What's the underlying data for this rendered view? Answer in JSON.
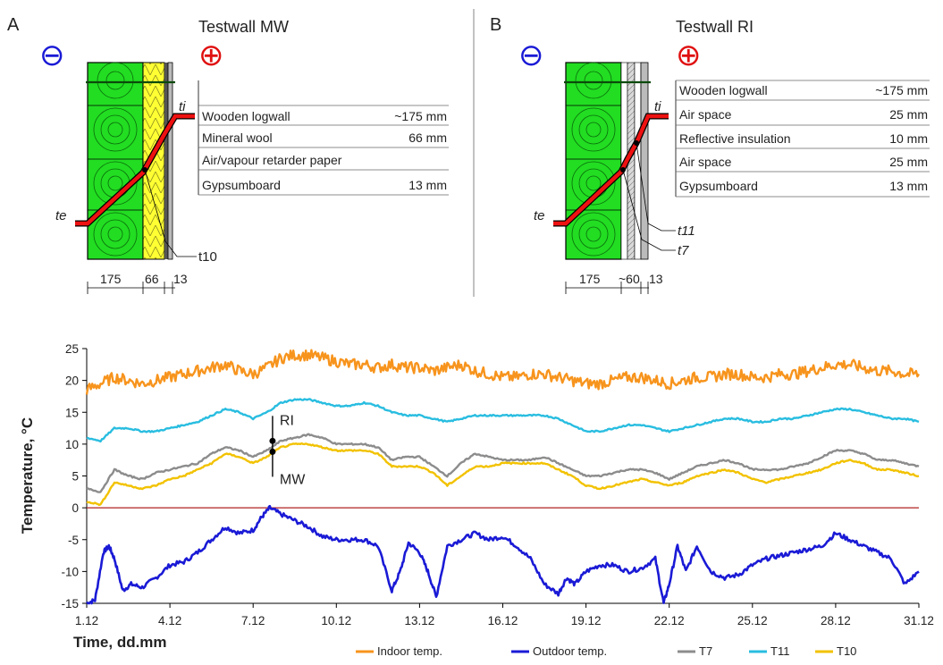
{
  "panels": [
    {
      "id": "A",
      "letter": "A",
      "title": "Testwall MW",
      "minus": "⊖",
      "plus": "⊕",
      "layers": [
        {
          "name": "Wooden logwall",
          "thickness": "~175 mm"
        },
        {
          "name": "Mineral wool",
          "thickness": "66 mm"
        },
        {
          "name": "Air/vapour retarder paper",
          "thickness": ""
        },
        {
          "name": "Gypsumboard",
          "thickness": "13 mm"
        }
      ],
      "label_te": "te",
      "label_ti": "ti",
      "sensors": [
        "t10"
      ],
      "dims": [
        "175",
        "66",
        "13"
      ]
    },
    {
      "id": "B",
      "letter": "B",
      "title": "Testwall RI",
      "minus": "⊖",
      "plus": "⊕",
      "layers": [
        {
          "name": "Wooden logwall",
          "thickness": "~175 mm"
        },
        {
          "name": "Air space",
          "thickness": "25 mm"
        },
        {
          "name": "Reflective insulation",
          "thickness": "10 mm"
        },
        {
          "name": "Air space",
          "thickness": "25 mm"
        },
        {
          "name": "Gypsumboard",
          "thickness": "13 mm"
        }
      ],
      "label_te": "te",
      "label_ti": "ti",
      "sensors": [
        "t11",
        "t7"
      ],
      "dims": [
        "175",
        "~60",
        "13"
      ]
    }
  ],
  "chart_data": {
    "type": "line",
    "xlabel": "Time, dd.mm",
    "ylabel": "Temperature, °C",
    "x_ticks": [
      "1.12",
      "4.12",
      "7.12",
      "10.12",
      "13.12",
      "16.12",
      "19.12",
      "22.12",
      "25.12",
      "28.12",
      "31.12"
    ],
    "x_tick_days": [
      1,
      4,
      7,
      10,
      13,
      16,
      19,
      22,
      25,
      28,
      31
    ],
    "xlim": [
      1,
      31
    ],
    "ylim": [
      -15,
      25
    ],
    "y_ticks": [
      -15,
      -10,
      -5,
      0,
      5,
      10,
      15,
      20,
      25
    ],
    "zero_line": true,
    "grid": false,
    "legend_position": "bottom",
    "annotations": [
      {
        "text": "RI",
        "x": 7.7,
        "y": 10.5
      },
      {
        "text": "MW",
        "x": 7.7,
        "y": 8.8
      }
    ],
    "series": [
      {
        "name": "Indoor temp.",
        "color": "#F7941D",
        "x": [
          1,
          1.5,
          2,
          2.5,
          3,
          3.5,
          4,
          4.5,
          5,
          5.5,
          6,
          6.5,
          7,
          7.5,
          8,
          8.5,
          9,
          9.5,
          10,
          10.5,
          11,
          11.5,
          12,
          12.5,
          13,
          13.5,
          14,
          14.5,
          15,
          15.5,
          16,
          16.5,
          17,
          17.5,
          18,
          18.5,
          19,
          19.5,
          20,
          20.5,
          21,
          21.5,
          22,
          22.5,
          23,
          23.5,
          24,
          24.5,
          25,
          25.5,
          26,
          26.5,
          27,
          27.5,
          28,
          28.5,
          29,
          29.5,
          30,
          30.5,
          31
        ],
        "values": [
          18.5,
          19.5,
          20.5,
          20,
          19.5,
          20,
          20.5,
          21,
          21.5,
          22,
          22.5,
          21.5,
          21,
          22,
          23.5,
          24,
          24,
          23.5,
          23,
          22.5,
          22.5,
          22,
          22.5,
          22,
          22,
          21.5,
          22,
          22.5,
          21.5,
          21,
          20.5,
          20.5,
          21,
          21,
          20.5,
          20,
          19.5,
          19.5,
          20,
          20.5,
          20.5,
          20,
          19.5,
          20,
          20.5,
          20.5,
          21,
          21,
          20.5,
          20.5,
          21,
          21,
          21.5,
          22,
          22.5,
          22.5,
          22,
          21.5,
          21.5,
          21,
          21
        ]
      },
      {
        "name": "Outdoor temp.",
        "color": "#1A1AD6",
        "x": [
          1,
          1.3,
          1.6,
          1.8,
          2,
          2.3,
          2.6,
          3,
          3.5,
          4,
          4.5,
          5,
          5.5,
          6,
          6.5,
          7,
          7.3,
          7.6,
          8,
          8.5,
          9,
          9.5,
          10,
          10.5,
          11,
          11.5,
          12,
          12.3,
          12.6,
          13,
          13.3,
          13.6,
          14,
          14.5,
          15,
          15.5,
          16,
          16.5,
          17,
          17.5,
          18,
          18.3,
          18.6,
          19,
          19.5,
          20,
          20.5,
          21,
          21.5,
          21.8,
          22,
          22.3,
          22.6,
          23,
          23.5,
          24,
          24.5,
          25,
          25.5,
          26,
          26.5,
          27,
          27.5,
          28,
          28.5,
          29,
          29.5,
          30,
          30.5,
          31
        ],
        "values": [
          -15,
          -14.5,
          -7,
          -6,
          -8,
          -13,
          -12,
          -12.5,
          -11,
          -9,
          -8.5,
          -7,
          -5,
          -3,
          -4,
          -3.5,
          -1.5,
          0,
          -1,
          -2,
          -3,
          -4.5,
          -5,
          -5,
          -5,
          -6,
          -13,
          -10,
          -5.5,
          -7,
          -10,
          -14,
          -6,
          -5,
          -4,
          -5,
          -4.5,
          -6,
          -8,
          -12,
          -13.5,
          -11,
          -12,
          -10,
          -9,
          -9,
          -10,
          -9.5,
          -8,
          -15,
          -12,
          -6,
          -10,
          -6,
          -10,
          -11,
          -10.5,
          -9,
          -8,
          -7.5,
          -7,
          -6.5,
          -6,
          -4,
          -5,
          -6,
          -7,
          -8,
          -12,
          -10
        ]
      },
      {
        "name": "T7",
        "color": "#8C8C8C",
        "x": [
          1,
          1.5,
          2,
          2.5,
          3,
          3.5,
          4,
          4.5,
          5,
          5.5,
          6,
          6.5,
          7,
          7.5,
          8,
          8.5,
          9,
          9.5,
          10,
          10.5,
          11,
          11.5,
          12,
          12.5,
          13,
          13.5,
          14,
          14.5,
          15,
          15.5,
          16,
          16.5,
          17,
          17.5,
          18,
          18.5,
          19,
          19.5,
          20,
          20.5,
          21,
          21.5,
          22,
          22.5,
          23,
          23.5,
          24,
          24.5,
          25,
          25.5,
          26,
          26.5,
          27,
          27.5,
          28,
          28.5,
          29,
          29.5,
          30,
          30.5,
          31
        ],
        "values": [
          3,
          2.5,
          6,
          5,
          4.5,
          5.5,
          6,
          6.5,
          7,
          8.5,
          9.5,
          9,
          8,
          9,
          10.5,
          11,
          11.5,
          11,
          10,
          10,
          10,
          9.5,
          7.5,
          8,
          8,
          6.5,
          5,
          7,
          8.5,
          8,
          7.5,
          7.5,
          7.5,
          8,
          7,
          6,
          5,
          5,
          5.5,
          6,
          6,
          5.5,
          4.5,
          5.5,
          6.5,
          7,
          7.5,
          7,
          6,
          6,
          6,
          6.5,
          7,
          8,
          9,
          9,
          8.5,
          7.5,
          7.5,
          7,
          6.5
        ]
      },
      {
        "name": "T11",
        "color": "#29BDE0",
        "x": [
          1,
          1.5,
          2,
          2.5,
          3,
          3.5,
          4,
          4.5,
          5,
          5.5,
          6,
          6.5,
          7,
          7.5,
          8,
          8.5,
          9,
          9.5,
          10,
          10.5,
          11,
          11.5,
          12,
          12.5,
          13,
          13.5,
          14,
          14.5,
          15,
          15.5,
          16,
          16.5,
          17,
          17.5,
          18,
          18.5,
          19,
          19.5,
          20,
          20.5,
          21,
          21.5,
          22,
          22.5,
          23,
          23.5,
          24,
          24.5,
          25,
          25.5,
          26,
          26.5,
          27,
          27.5,
          28,
          28.5,
          29,
          29.5,
          30,
          30.5,
          31
        ],
        "values": [
          11,
          10.5,
          12.5,
          12.5,
          12,
          12,
          12.5,
          13,
          13.5,
          14.5,
          15.5,
          15,
          14,
          15,
          16.5,
          17,
          17,
          16.5,
          16,
          16,
          16.5,
          16,
          15,
          14.5,
          14.5,
          14,
          13.5,
          14,
          14.5,
          14.5,
          14.5,
          14.5,
          14.5,
          14.5,
          14,
          13,
          12,
          12,
          12.5,
          13,
          13,
          12.5,
          12,
          12.5,
          13,
          13.5,
          14,
          14,
          13.5,
          13.5,
          14,
          14,
          14.5,
          15,
          15.5,
          15.5,
          15,
          14.5,
          14,
          14,
          13.5
        ]
      },
      {
        "name": "T10",
        "color": "#F2C200",
        "x": [
          1,
          1.5,
          2,
          2.5,
          3,
          3.5,
          4,
          4.5,
          5,
          5.5,
          6,
          6.5,
          7,
          7.5,
          8,
          8.5,
          9,
          9.5,
          10,
          10.5,
          11,
          11.5,
          12,
          12.5,
          13,
          13.5,
          14,
          14.5,
          15,
          15.5,
          16,
          16.5,
          17,
          17.5,
          18,
          18.5,
          19,
          19.5,
          20,
          20.5,
          21,
          21.5,
          22,
          22.5,
          23,
          23.5,
          24,
          24.5,
          25,
          25.5,
          26,
          26.5,
          27,
          27.5,
          28,
          28.5,
          29,
          29.5,
          30,
          30.5,
          31
        ],
        "values": [
          1,
          0.5,
          4,
          3.5,
          3,
          3.5,
          4.5,
          5,
          6,
          7,
          8.5,
          8,
          7,
          8,
          9.5,
          10,
          10,
          9.5,
          9,
          9,
          9,
          8.5,
          6.5,
          6.5,
          6.5,
          5.5,
          3.5,
          5,
          6.5,
          6.5,
          7,
          7,
          7,
          7,
          6,
          5,
          3.5,
          3,
          3.5,
          4,
          4.5,
          4,
          3.5,
          4,
          5,
          5.5,
          6,
          5.5,
          4.5,
          4,
          4.5,
          5,
          5.5,
          6,
          7,
          7.5,
          7,
          6,
          6,
          5.5,
          5
        ]
      }
    ]
  }
}
